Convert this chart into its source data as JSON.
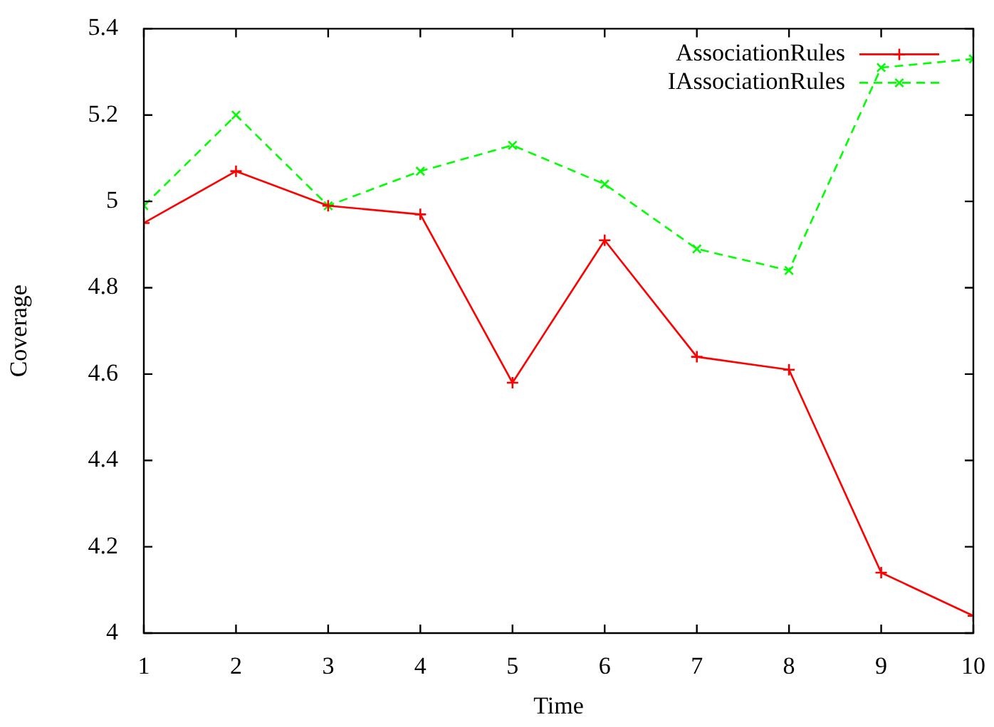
{
  "chart_data": {
    "type": "line",
    "xlabel": "Time",
    "ylabel": "Coverage",
    "x": [
      1,
      2,
      3,
      4,
      5,
      6,
      7,
      8,
      9,
      10
    ],
    "xlim": [
      1,
      10
    ],
    "xticks": [
      1,
      2,
      3,
      4,
      5,
      6,
      7,
      8,
      9,
      10
    ],
    "ylim": [
      4,
      5.4
    ],
    "yticks": [
      4,
      4.2,
      4.4,
      4.6,
      4.8,
      5,
      5.2,
      5.4
    ],
    "legend": "top right",
    "series": [
      {
        "name": "AssociationRules",
        "color": "#ff0000",
        "marker": "cross",
        "line_style": "solid",
        "values": [
          4.95,
          5.07,
          4.99,
          4.97,
          4.58,
          4.91,
          4.64,
          4.61,
          4.14,
          4.04
        ]
      },
      {
        "name": "IAssociationRules",
        "color": "#00ff00",
        "marker": "x",
        "line_style": "dashed",
        "values": [
          4.99,
          5.2,
          4.99,
          5.07,
          5.13,
          5.04,
          4.89,
          4.84,
          5.31,
          5.33
        ]
      }
    ]
  }
}
